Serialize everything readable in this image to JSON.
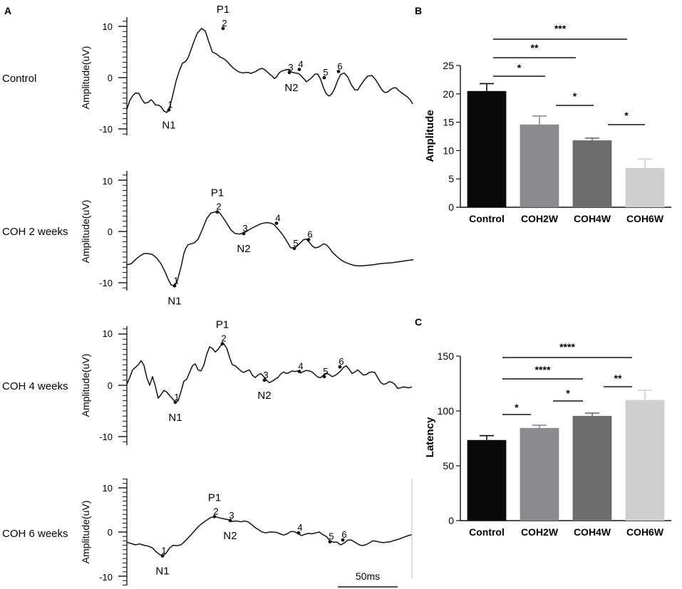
{
  "panel_labels": [
    "A",
    "B",
    "C"
  ],
  "waveforms": {
    "ylabel": "Amplitude(uV)",
    "scale_bar": "50ms",
    "panels": [
      {
        "name": "Control",
        "row_label": "Control",
        "yticks": [
          "10",
          "0",
          "-10"
        ],
        "trace_t": [
          0,
          4,
          8,
          12,
          17,
          21,
          25,
          30,
          34,
          37,
          40,
          45,
          48,
          52,
          56,
          60,
          64,
          69,
          74,
          78,
          82,
          86,
          90,
          94,
          99,
          105,
          110,
          115,
          120,
          126,
          131,
          136,
          141,
          146,
          151,
          156,
          160,
          163,
          166,
          171,
          174,
          177,
          181,
          185,
          190,
          194,
          198,
          201,
          204,
          207,
          210,
          213,
          216,
          220,
          226,
          231,
          236,
          241,
          247,
          252,
          258,
          264,
          268,
          272,
          276,
          280,
          284,
          288,
          292,
          296,
          300,
          305,
          310,
          315,
          320,
          324,
          328,
          333,
          338,
          344,
          349,
          354,
          358,
          362,
          366,
          370,
          374,
          378,
          382,
          386,
          390,
          394,
          398,
          401
        ],
        "trace_v": [
          -6.2,
          -4.5,
          -3.6,
          -3.0,
          -3.1,
          -4.2,
          -5.0,
          -4.8,
          -4.3,
          -4.7,
          -5.3,
          -5.4,
          -5.7,
          -6.5,
          -6.8,
          -5.8,
          -3.7,
          -0.7,
          1.5,
          2.8,
          3.1,
          3.9,
          5.4,
          7.0,
          8.7,
          9.6,
          9.1,
          7.0,
          5.0,
          4.6,
          4.0,
          3.7,
          3.1,
          2.3,
          1.7,
          1.2,
          1.0,
          0.9,
          1.0,
          1.0,
          0.8,
          1.0,
          1.2,
          1.6,
          1.8,
          1.5,
          1.0,
          0.6,
          0.3,
          -0.2,
          0.1,
          0.8,
          1.2,
          1.4,
          1.6,
          1.1,
          0.9,
          0.8,
          0.0,
          -0.8,
          -0.2,
          0.7,
          0.7,
          -0.4,
          -2.0,
          -3.2,
          -3.6,
          -3.1,
          -2.0,
          -0.5,
          0.6,
          0.9,
          0.1,
          -1.4,
          -2.4,
          -2.4,
          -1.5,
          -0.5,
          0.3,
          0.4,
          -0.4,
          -1.5,
          -2.4,
          -2.9,
          -2.8,
          -2.3,
          -2.0,
          -2.0,
          -2.6,
          -3.0,
          -3.4,
          -3.8,
          -4.4,
          -5.1
        ],
        "markers": [
          {
            "t": 59,
            "v": -6.3,
            "label": "1"
          },
          {
            "t": 135,
            "v": 9.6,
            "label": "2"
          },
          {
            "t": 228,
            "v": 1.0,
            "label": "3"
          },
          {
            "t": 242,
            "v": 1.6,
            "label": "4"
          },
          {
            "t": 277,
            "v": 0.0,
            "label": "5"
          },
          {
            "t": 297,
            "v": 1.2,
            "label": "6"
          }
        ],
        "peaks": [
          {
            "t": 59,
            "v": -6.3,
            "label": "N1",
            "pos": "below"
          },
          {
            "t": 135,
            "v": 9.6,
            "label": "P1",
            "pos": "above"
          },
          {
            "t": 231,
            "v": 1.0,
            "label": "N2",
            "pos": "below"
          }
        ]
      },
      {
        "name": "COH 2 weeks",
        "row_label": "COH 2 weeks",
        "yticks": [
          "10",
          "0",
          "-10"
        ],
        "trace_t": [
          0,
          6,
          12,
          18,
          24,
          30,
          36,
          42,
          48,
          54,
          58,
          62,
          66,
          70,
          74,
          77,
          80,
          83,
          86,
          90,
          95,
          100,
          106,
          112,
          118,
          124,
          130,
          136,
          142,
          146,
          152,
          158,
          164,
          170,
          176,
          182,
          188,
          194,
          200,
          206,
          212,
          218,
          224,
          230,
          236,
          242,
          248,
          252,
          256,
          260,
          264,
          268,
          272,
          276,
          280,
          284,
          288,
          294,
          300,
          306,
          312,
          318,
          324,
          330,
          338,
          346,
          354,
          362,
          372,
          382,
          392,
          402
        ],
        "trace_v": [
          -6.5,
          -6.3,
          -5.5,
          -4.8,
          -4.3,
          -4.3,
          -4.5,
          -5.2,
          -6.3,
          -8.0,
          -9.3,
          -10.4,
          -10.6,
          -10.0,
          -8.0,
          -6.3,
          -4.3,
          -3.2,
          -2.6,
          -2.4,
          -2.2,
          -1.5,
          0.4,
          2.5,
          3.6,
          3.8,
          3.7,
          2.5,
          1.2,
          0.3,
          -0.4,
          -0.5,
          -0.3,
          0.2,
          0.7,
          1.1,
          1.5,
          1.7,
          1.7,
          1.4,
          0.5,
          -0.5,
          -1.8,
          -3.2,
          -3.2,
          -2.4,
          -1.6,
          -1.5,
          -2.1,
          -2.8,
          -3.2,
          -3.1,
          -2.8,
          -2.4,
          -2.6,
          -3.2,
          -4.0,
          -4.8,
          -5.5,
          -6.0,
          -6.3,
          -6.6,
          -6.7,
          -6.7,
          -6.6,
          -6.5,
          -6.3,
          -6.2,
          -6.1,
          -5.9,
          -5.7,
          -5.5
        ],
        "markers": [
          {
            "t": 67,
            "v": -10.6,
            "label": "1"
          },
          {
            "t": 127,
            "v": 3.8,
            "label": "2"
          },
          {
            "t": 164,
            "v": -0.4,
            "label": "3"
          },
          {
            "t": 210,
            "v": 1.6,
            "label": "4"
          },
          {
            "t": 235,
            "v": -3.3,
            "label": "5"
          },
          {
            "t": 255,
            "v": -1.6,
            "label": "6"
          }
        ],
        "peaks": [
          {
            "t": 67,
            "v": -10.6,
            "label": "N1",
            "pos": "below"
          },
          {
            "t": 127,
            "v": 3.8,
            "label": "P1",
            "pos": "above"
          },
          {
            "t": 164,
            "v": -0.4,
            "label": "N2",
            "pos": "below"
          }
        ]
      },
      {
        "name": "COH 4 weeks",
        "row_label": "COH 4 weeks",
        "yticks": [
          "10",
          "0",
          "-10"
        ],
        "trace_t": [
          0,
          4,
          8,
          12,
          16,
          20,
          24,
          28,
          32,
          36,
          40,
          44,
          48,
          52,
          56,
          60,
          64,
          68,
          72,
          76,
          80,
          84,
          88,
          92,
          96,
          100,
          104,
          108,
          112,
          116,
          120,
          124,
          128,
          132,
          136,
          140,
          144,
          148,
          152,
          156,
          160,
          164,
          168,
          172,
          176,
          180,
          184,
          188,
          192,
          196,
          200,
          204,
          208,
          212,
          216,
          220,
          224,
          228,
          232,
          236,
          240,
          244,
          248,
          252,
          256,
          260,
          264,
          268,
          272,
          276,
          280,
          284,
          288,
          292,
          296,
          300,
          304,
          308,
          312,
          316,
          320,
          324,
          328,
          332,
          336,
          340,
          344,
          348,
          352,
          356,
          360,
          364,
          368,
          372,
          376,
          380,
          384,
          388,
          392,
          396,
          400
        ],
        "trace_v": [
          0.2,
          1.5,
          3.0,
          3.5,
          4.0,
          4.8,
          3.9,
          1.5,
          0.0,
          1.7,
          -0.2,
          -2.5,
          -1.8,
          -1.0,
          -1.3,
          -2.0,
          -2.6,
          -3.3,
          -3.0,
          -1.2,
          0.8,
          1.2,
          2.5,
          3.8,
          4.2,
          3.0,
          2.8,
          3.9,
          6.0,
          7.5,
          7.2,
          6.5,
          7.0,
          7.8,
          8.1,
          7.3,
          5.5,
          4.0,
          3.8,
          3.3,
          2.8,
          2.5,
          2.8,
          3.0,
          2.0,
          1.5,
          2.0,
          2.3,
          1.7,
          1.0,
          0.5,
          0.8,
          1.2,
          1.5,
          2.2,
          2.6,
          2.3,
          2.5,
          2.8,
          2.7,
          2.8,
          2.4,
          2.7,
          2.9,
          2.8,
          2.6,
          2.1,
          1.6,
          1.5,
          2.0,
          2.4,
          2.1,
          1.7,
          1.9,
          2.3,
          2.8,
          3.5,
          3.8,
          3.1,
          2.3,
          2.6,
          3.0,
          2.5,
          2.0,
          2.1,
          2.5,
          2.6,
          2.5,
          1.5,
          0.6,
          0.2,
          0.3,
          0.7,
          0.6,
          0.2,
          -0.6,
          -0.5,
          -0.3,
          -0.4,
          -0.5,
          -0.3
        ],
        "markers": [
          {
            "t": 68,
            "v": -3.3,
            "label": "1"
          },
          {
            "t": 134,
            "v": 8.1,
            "label": "2"
          },
          {
            "t": 193,
            "v": 1.0,
            "label": "3"
          },
          {
            "t": 242,
            "v": 2.7,
            "label": "4"
          },
          {
            "t": 277,
            "v": 1.7,
            "label": "5"
          },
          {
            "t": 299,
            "v": 3.6,
            "label": "6"
          }
        ],
        "peaks": [
          {
            "t": 68,
            "v": -3.3,
            "label": "N1",
            "pos": "below"
          },
          {
            "t": 134,
            "v": 8.1,
            "label": "P1",
            "pos": "above"
          },
          {
            "t": 193,
            "v": 1.0,
            "label": "N2",
            "pos": "below"
          }
        ]
      },
      {
        "name": "COH 6 weeks",
        "row_label": "COH 6 weeks",
        "yticks": [
          "10",
          "0",
          "-10"
        ],
        "trace_t": [
          0,
          6,
          12,
          18,
          24,
          30,
          36,
          40,
          45,
          50,
          55,
          60,
          65,
          70,
          76,
          82,
          88,
          94,
          100,
          106,
          112,
          118,
          124,
          130,
          136,
          142,
          148,
          154,
          160,
          165,
          170,
          175,
          180,
          185,
          190,
          195,
          200,
          205,
          210,
          215,
          220,
          225,
          230,
          235,
          240,
          245,
          250,
          255,
          260,
          265,
          270,
          275,
          280,
          285,
          290,
          295,
          300,
          305,
          310,
          315,
          320,
          325,
          330,
          335,
          340,
          345,
          350,
          355,
          360,
          365,
          370,
          375,
          380,
          385,
          390,
          395,
          400
        ],
        "trace_v": [
          -2.3,
          -2.6,
          -2.9,
          -2.7,
          -3.0,
          -3.2,
          -3.6,
          -4.3,
          -5.0,
          -5.4,
          -4.8,
          -3.6,
          -3.0,
          -3.1,
          -2.9,
          -2.0,
          -1.0,
          0.1,
          1.2,
          2.0,
          2.7,
          3.3,
          3.5,
          3.2,
          3.0,
          2.8,
          2.4,
          2.5,
          2.3,
          2.5,
          2.3,
          1.7,
          1.0,
          0.5,
          0.0,
          -0.2,
          0.0,
          0.0,
          -0.1,
          -0.4,
          -0.7,
          -0.4,
          0.1,
          0.1,
          -0.3,
          -0.8,
          -0.5,
          -0.3,
          -0.4,
          -0.2,
          0.0,
          -0.6,
          -1.0,
          -2.0,
          -2.3,
          -2.3,
          -2.9,
          -2.5,
          -1.8,
          -1.8,
          -2.3,
          -2.8,
          -3.1,
          -2.9,
          -2.5,
          -2.0,
          -2.1,
          -2.3,
          -2.4,
          -2.3,
          -2.2,
          -1.9,
          -1.7,
          -1.4,
          -1.1,
          -0.8,
          -0.6
        ],
        "markers": [
          {
            "t": 50,
            "v": -5.4,
            "label": "1"
          },
          {
            "t": 123,
            "v": 3.5,
            "label": "2"
          },
          {
            "t": 145,
            "v": 2.6,
            "label": "3"
          },
          {
            "t": 241,
            "v": -0.2,
            "label": "4"
          },
          {
            "t": 285,
            "v": -2.2,
            "label": "5"
          },
          {
            "t": 303,
            "v": -1.8,
            "label": "6"
          }
        ],
        "peaks": [
          {
            "t": 50,
            "v": -5.4,
            "label": "N1",
            "pos": "below"
          },
          {
            "t": 123,
            "v": 3.5,
            "label": "P1",
            "pos": "above"
          },
          {
            "t": 145,
            "v": 2.6,
            "label": "N2",
            "pos": "below"
          }
        ]
      }
    ]
  },
  "chart_data": [
    {
      "type": "bar",
      "panel": "B",
      "title": "",
      "ylabel": "Amplitude",
      "xlabel": "",
      "categories": [
        "Control",
        "COH2W",
        "COH4W",
        "COH6W"
      ],
      "values": [
        20.5,
        14.6,
        11.8,
        6.9
      ],
      "errors": [
        1.3,
        1.5,
        0.4,
        1.6
      ],
      "colors": [
        "#0a0a0a",
        "#8b8b8e",
        "#6c6c6c",
        "#cfcfcf"
      ],
      "ylim": [
        0,
        25
      ],
      "yticks": [
        "0",
        "5",
        "10",
        "15",
        "20",
        "25"
      ],
      "significance": [
        {
          "from": 0,
          "to": 1,
          "label": "*"
        },
        {
          "from": 0,
          "to": 2,
          "label": "**"
        },
        {
          "from": 0,
          "to": 3,
          "label": "***"
        },
        {
          "from": 1,
          "to": 2,
          "label": "*"
        },
        {
          "from": 2,
          "to": 3,
          "label": "*"
        }
      ]
    },
    {
      "type": "bar",
      "panel": "C",
      "title": "",
      "ylabel": "Latency",
      "xlabel": "",
      "categories": [
        "Control",
        "COH2W",
        "COH4W",
        "COH6W"
      ],
      "values": [
        73.5,
        84.5,
        95.5,
        110
      ],
      "errors": [
        4,
        2.5,
        2.5,
        9
      ],
      "colors": [
        "#0a0a0a",
        "#8b8b8e",
        "#6c6c6c",
        "#cfcfcf"
      ],
      "ylim": [
        0,
        150
      ],
      "yticks": [
        "0",
        "50",
        "100",
        "150"
      ],
      "significance": [
        {
          "from": 0,
          "to": 1,
          "label": "*"
        },
        {
          "from": 0,
          "to": 2,
          "label": "****"
        },
        {
          "from": 0,
          "to": 3,
          "label": "****"
        },
        {
          "from": 1,
          "to": 2,
          "label": "*"
        },
        {
          "from": 2,
          "to": 3,
          "label": "**"
        }
      ]
    }
  ]
}
